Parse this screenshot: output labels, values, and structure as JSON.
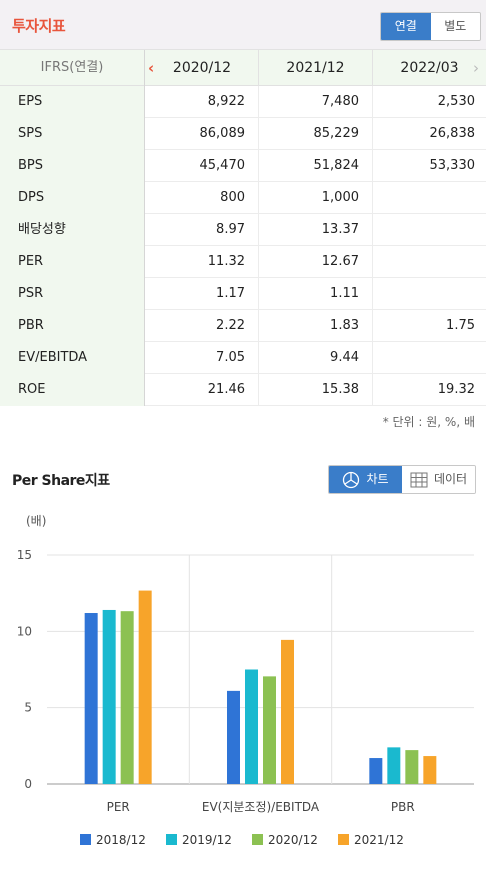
{
  "header": {
    "title": "투자지표",
    "toggle": [
      {
        "label": "연결",
        "active": true
      },
      {
        "label": "별도",
        "active": false
      }
    ]
  },
  "table": {
    "corner_label": "IFRS(연결)",
    "columns": [
      "2020/12",
      "2021/12",
      "2022/03"
    ],
    "rows": [
      {
        "label": "EPS",
        "values": [
          "8,922",
          "7,480",
          "2,530"
        ]
      },
      {
        "label": "SPS",
        "values": [
          "86,089",
          "85,229",
          "26,838"
        ]
      },
      {
        "label": "BPS",
        "values": [
          "45,470",
          "51,824",
          "53,330"
        ]
      },
      {
        "label": "DPS",
        "values": [
          "800",
          "1,000",
          ""
        ]
      },
      {
        "label": "배당성향",
        "values": [
          "8.97",
          "13.37",
          ""
        ]
      },
      {
        "label": "PER",
        "values": [
          "11.32",
          "12.67",
          ""
        ]
      },
      {
        "label": "PSR",
        "values": [
          "1.17",
          "1.11",
          ""
        ]
      },
      {
        "label": "PBR",
        "values": [
          "2.22",
          "1.83",
          "1.75"
        ]
      },
      {
        "label": "EV/EBITDA",
        "values": [
          "7.05",
          "9.44",
          ""
        ]
      },
      {
        "label": "ROE",
        "values": [
          "21.46",
          "15.38",
          "19.32"
        ]
      }
    ],
    "unit_note": "* 단위 : 원, %, 배"
  },
  "per_share": {
    "title": "Per Share지표",
    "toggle": [
      {
        "label": "차트",
        "icon": "pie-chart-icon",
        "active": true
      },
      {
        "label": "데이터",
        "icon": "grid-table-icon",
        "active": false
      }
    ]
  },
  "chart_data": {
    "type": "bar",
    "ylabel": "(배)",
    "ylim": [
      0,
      15
    ],
    "yticks": [
      0,
      5,
      10,
      15
    ],
    "categories": [
      "PER",
      "EV(지분조정)/EBITDA",
      "PBR"
    ],
    "series": [
      {
        "name": "2018/12",
        "color": "#2f74d6",
        "values": [
          11.2,
          6.1,
          1.7
        ]
      },
      {
        "name": "2019/12",
        "color": "#1ab9cf",
        "values": [
          11.4,
          7.5,
          2.4
        ]
      },
      {
        "name": "2020/12",
        "color": "#8cc152",
        "values": [
          11.32,
          7.05,
          2.22
        ]
      },
      {
        "name": "2021/12",
        "color": "#f7a42a",
        "values": [
          12.67,
          9.44,
          1.83
        ]
      }
    ],
    "grid": true,
    "legend": "bottom"
  }
}
